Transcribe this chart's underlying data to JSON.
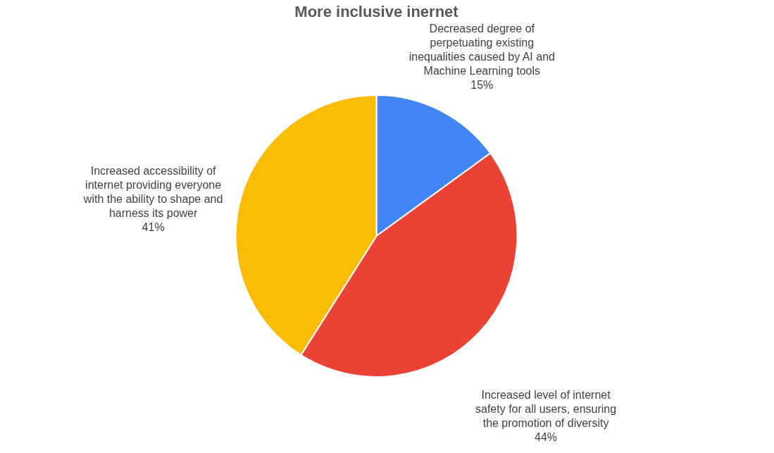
{
  "chart_data": {
    "type": "pie",
    "title": "More inclusive inernet",
    "categories": [
      "Decreased degree of perpetuating existing inequalities caused by AI and Machine Learning tools",
      "Increased level of internet safety for all users, ensuring the promotion of diversity",
      "Increased accessibility of internet providing everyone with the ability to shape and harness its power"
    ],
    "values": [
      15,
      44,
      41
    ],
    "colors": [
      "#4285f4",
      "#ea4335",
      "#fbbc04"
    ],
    "value_labels": [
      "15%",
      "44%",
      "41%"
    ],
    "legend": false
  }
}
